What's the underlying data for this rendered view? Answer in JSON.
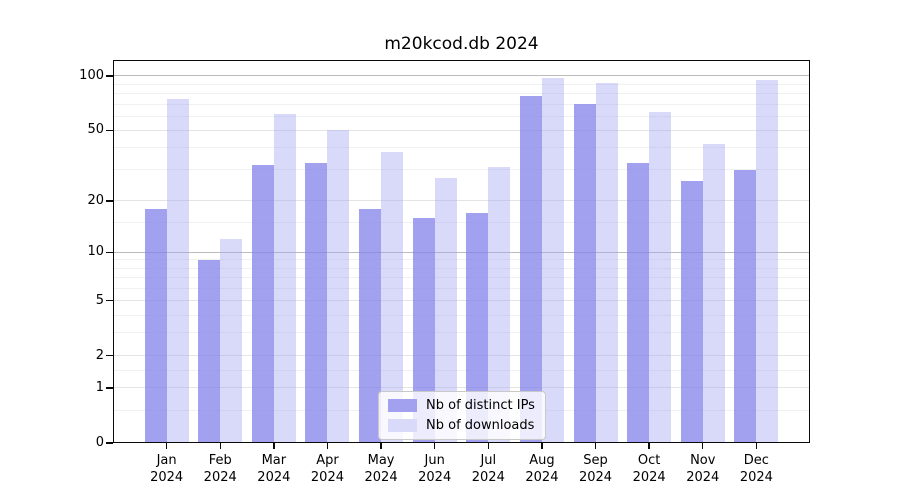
{
  "title": "m20kcod.db 2024",
  "chart_data": {
    "type": "bar",
    "title": "m20kcod.db 2024",
    "categories": [
      {
        "month": "Jan",
        "year": "2024"
      },
      {
        "month": "Feb",
        "year": "2024"
      },
      {
        "month": "Mar",
        "year": "2024"
      },
      {
        "month": "Apr",
        "year": "2024"
      },
      {
        "month": "May",
        "year": "2024"
      },
      {
        "month": "Jun",
        "year": "2024"
      },
      {
        "month": "Jul",
        "year": "2024"
      },
      {
        "month": "Aug",
        "year": "2024"
      },
      {
        "month": "Sep",
        "year": "2024"
      },
      {
        "month": "Oct",
        "year": "2024"
      },
      {
        "month": "Nov",
        "year": "2024"
      },
      {
        "month": "Dec",
        "year": "2024"
      }
    ],
    "series": [
      {
        "name": "Nb of distinct IPs",
        "color": "#a1a1f0",
        "fill_rgba": "rgba(130,130,235,0.75)",
        "values": [
          18,
          9,
          32,
          33,
          18,
          16,
          17,
          78,
          70,
          33,
          26,
          30
        ]
      },
      {
        "name": "Nb of downloads",
        "color": "#d9d9f9",
        "fill_rgba": "rgba(160,160,240,0.4)",
        "values": [
          75,
          12,
          62,
          50,
          38,
          27,
          31,
          97,
          91,
          63,
          42,
          95
        ]
      }
    ],
    "yscale": "log1p",
    "yticks": [
      0,
      1,
      2,
      5,
      10,
      20,
      50,
      100
    ],
    "ylim": [
      0,
      122.5
    ],
    "minor_gridlines": [
      0.5,
      1.5,
      3,
      4,
      6,
      7,
      8,
      9,
      15,
      30,
      40,
      60,
      70,
      80,
      90
    ],
    "emphasized_gridlines": [
      10,
      100
    ],
    "grid": true,
    "legend_position": "lower center",
    "gridline_colors": {
      "minor": "#f1f1f1",
      "major": "#e4e4e4",
      "emphasized": "#bcbcbc"
    }
  }
}
